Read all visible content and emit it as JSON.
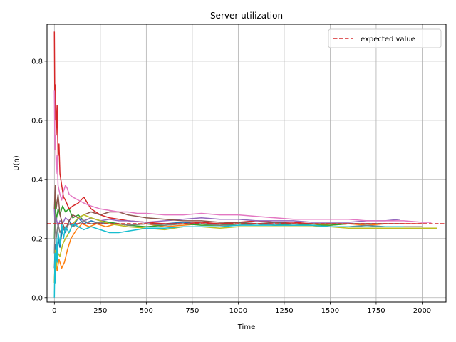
{
  "chart_data": {
    "type": "line",
    "title": "Server utilization",
    "xlabel": "Time",
    "ylabel": "U(n)",
    "xlim": [
      -40,
      2130
    ],
    "ylim": [
      -0.015,
      0.925
    ],
    "xticks": [
      0,
      250,
      500,
      750,
      1000,
      1250,
      1500,
      1750,
      2000
    ],
    "yticks": [
      0.0,
      0.2,
      0.4,
      0.6,
      0.8
    ],
    "ytick_labels": [
      "0.0",
      "0.2",
      "0.4",
      "0.6",
      "0.8"
    ],
    "grid": true,
    "legend": {
      "placement": "top-right",
      "entries": [
        "expected value"
      ]
    },
    "reference_line": {
      "name": "expected value",
      "y": 0.25,
      "color": "#d62728",
      "style": "dashed"
    },
    "series": [
      {
        "color": "#1f77b4",
        "x": [
          0,
          5,
          10,
          20,
          30,
          45,
          60,
          80,
          100,
          130,
          160,
          200,
          250,
          300,
          350,
          400,
          500,
          600,
          700,
          800,
          900,
          1000,
          1100,
          1200,
          1300,
          1400,
          1500,
          1600,
          1700,
          1800,
          1900
        ],
        "y": [
          0.1,
          0.18,
          0.12,
          0.2,
          0.17,
          0.24,
          0.22,
          0.26,
          0.24,
          0.27,
          0.25,
          0.26,
          0.25,
          0.255,
          0.25,
          0.245,
          0.25,
          0.25,
          0.255,
          0.25,
          0.25,
          0.255,
          0.25,
          0.25,
          0.25,
          0.25,
          0.25,
          0.25,
          0.25,
          0.25,
          0.25
        ]
      },
      {
        "color": "#ff7f0e",
        "x": [
          0,
          5,
          15,
          25,
          40,
          55,
          70,
          90,
          120,
          150,
          190,
          230,
          280,
          340,
          400,
          500,
          600,
          700,
          800,
          900,
          1000,
          1100,
          1200,
          1300,
          1400,
          1500,
          1600,
          1700,
          1800,
          1900,
          2000
        ],
        "y": [
          0.05,
          0.14,
          0.09,
          0.13,
          0.1,
          0.12,
          0.16,
          0.2,
          0.23,
          0.25,
          0.24,
          0.25,
          0.24,
          0.25,
          0.245,
          0.25,
          0.24,
          0.245,
          0.25,
          0.245,
          0.25,
          0.25,
          0.245,
          0.25,
          0.25,
          0.245,
          0.25,
          0.245,
          0.25,
          0.25,
          0.25
        ]
      },
      {
        "color": "#2ca02c",
        "x": [
          0,
          5,
          10,
          20,
          30,
          45,
          60,
          80,
          100,
          130,
          160,
          200,
          250,
          300,
          350,
          400,
          500,
          600,
          700,
          800,
          900,
          1000,
          1100,
          1200,
          1300,
          1400,
          1500,
          1600,
          1700,
          1800
        ],
        "y": [
          0.2,
          0.33,
          0.26,
          0.3,
          0.28,
          0.31,
          0.29,
          0.3,
          0.27,
          0.28,
          0.26,
          0.27,
          0.26,
          0.255,
          0.25,
          0.245,
          0.24,
          0.245,
          0.25,
          0.245,
          0.245,
          0.25,
          0.25,
          0.245,
          0.25,
          0.245,
          0.245,
          0.25,
          0.25,
          0.25
        ]
      },
      {
        "color": "#d62728",
        "x": [
          0,
          3,
          6,
          10,
          15,
          20,
          25,
          30,
          40,
          50,
          60,
          80,
          100,
          130,
          160,
          200,
          250,
          300,
          350,
          400,
          500,
          600,
          700,
          800,
          900,
          1000,
          1100,
          1200,
          1300,
          1400,
          1500,
          1600,
          1700,
          1800,
          1900,
          2000
        ],
        "y": [
          0.9,
          0.6,
          0.72,
          0.55,
          0.65,
          0.48,
          0.52,
          0.42,
          0.38,
          0.34,
          0.33,
          0.3,
          0.31,
          0.32,
          0.34,
          0.3,
          0.28,
          0.27,
          0.265,
          0.26,
          0.255,
          0.25,
          0.25,
          0.255,
          0.25,
          0.255,
          0.26,
          0.255,
          0.255,
          0.25,
          0.25,
          0.25,
          0.25,
          0.25,
          0.25,
          0.25
        ]
      },
      {
        "color": "#9467bd",
        "x": [
          0,
          5,
          10,
          20,
          30,
          45,
          60,
          80,
          100,
          130,
          160,
          200,
          250,
          300,
          350,
          400,
          500,
          600,
          700,
          800,
          900,
          1000,
          1100,
          1200,
          1300,
          1400,
          1500,
          1600,
          1700,
          1800,
          1880
        ],
        "y": [
          0.3,
          0.22,
          0.27,
          0.24,
          0.26,
          0.25,
          0.27,
          0.26,
          0.28,
          0.27,
          0.26,
          0.27,
          0.26,
          0.265,
          0.26,
          0.26,
          0.255,
          0.26,
          0.265,
          0.27,
          0.265,
          0.265,
          0.26,
          0.26,
          0.26,
          0.255,
          0.255,
          0.255,
          0.26,
          0.26,
          0.265
        ]
      },
      {
        "color": "#8c564b",
        "x": [
          0,
          5,
          10,
          20,
          30,
          45,
          60,
          80,
          100,
          130,
          160,
          200,
          250,
          300,
          350,
          400,
          500,
          600,
          700,
          800,
          900,
          1000,
          1100,
          1200,
          1300,
          1400,
          1500,
          1600,
          1700,
          1800,
          1900
        ],
        "y": [
          0.3,
          0.38,
          0.3,
          0.35,
          0.28,
          0.25,
          0.23,
          0.26,
          0.28,
          0.27,
          0.28,
          0.29,
          0.28,
          0.29,
          0.29,
          0.28,
          0.27,
          0.265,
          0.26,
          0.26,
          0.255,
          0.255,
          0.25,
          0.255,
          0.25,
          0.25,
          0.25,
          0.25,
          0.25,
          0.25,
          0.25
        ]
      },
      {
        "color": "#e377c2",
        "x": [
          0,
          3,
          6,
          10,
          15,
          20,
          30,
          40,
          50,
          60,
          70,
          80,
          100,
          130,
          160,
          200,
          250,
          300,
          350,
          400,
          450,
          500,
          600,
          700,
          800,
          900,
          1000,
          1100,
          1200,
          1300,
          1400,
          1500,
          1600,
          1700,
          1800,
          1900,
          2000,
          2050
        ],
        "y": [
          0.7,
          0.5,
          0.55,
          0.42,
          0.48,
          0.38,
          0.35,
          0.33,
          0.36,
          0.38,
          0.37,
          0.35,
          0.34,
          0.33,
          0.32,
          0.31,
          0.3,
          0.295,
          0.29,
          0.29,
          0.285,
          0.285,
          0.28,
          0.28,
          0.285,
          0.28,
          0.28,
          0.275,
          0.27,
          0.265,
          0.265,
          0.265,
          0.265,
          0.26,
          0.26,
          0.26,
          0.255,
          0.255
        ]
      },
      {
        "color": "#7f7f7f",
        "x": [
          0,
          5,
          10,
          20,
          30,
          45,
          60,
          80,
          100,
          130,
          160,
          200,
          250,
          300,
          350,
          400,
          500,
          600,
          700,
          800,
          900,
          1000,
          1100,
          1200,
          1300,
          1400,
          1500,
          1600,
          1700,
          1800,
          1900,
          2000
        ],
        "y": [
          0.15,
          0.28,
          0.2,
          0.25,
          0.22,
          0.24,
          0.23,
          0.25,
          0.24,
          0.25,
          0.26,
          0.25,
          0.255,
          0.25,
          0.25,
          0.245,
          0.25,
          0.245,
          0.25,
          0.25,
          0.245,
          0.245,
          0.25,
          0.245,
          0.245,
          0.245,
          0.24,
          0.24,
          0.245,
          0.24,
          0.24,
          0.24
        ]
      },
      {
        "color": "#bcbd22",
        "x": [
          0,
          5,
          10,
          20,
          30,
          45,
          60,
          80,
          100,
          130,
          160,
          200,
          250,
          300,
          350,
          400,
          500,
          600,
          700,
          800,
          900,
          1000,
          1100,
          1200,
          1300,
          1400,
          1500,
          1600,
          1700,
          1800,
          1900,
          2000,
          2080
        ],
        "y": [
          0.05,
          0.16,
          0.1,
          0.15,
          0.14,
          0.18,
          0.2,
          0.22,
          0.25,
          0.27,
          0.28,
          0.27,
          0.26,
          0.25,
          0.245,
          0.24,
          0.235,
          0.23,
          0.24,
          0.24,
          0.235,
          0.24,
          0.24,
          0.24,
          0.24,
          0.24,
          0.24,
          0.235,
          0.235,
          0.235,
          0.235,
          0.235,
          0.235
        ]
      },
      {
        "color": "#17becf",
        "x": [
          0,
          3,
          6,
          10,
          15,
          20,
          30,
          40,
          50,
          60,
          80,
          100,
          130,
          160,
          200,
          250,
          300,
          350,
          400,
          450,
          500,
          600,
          700,
          800,
          900,
          1000,
          1100,
          1200,
          1300,
          1400,
          1500,
          1600,
          1700,
          1800,
          1900
        ],
        "y": [
          0.0,
          0.15,
          0.05,
          0.2,
          0.12,
          0.22,
          0.18,
          0.25,
          0.2,
          0.24,
          0.22,
          0.25,
          0.24,
          0.23,
          0.24,
          0.23,
          0.22,
          0.22,
          0.225,
          0.23,
          0.235,
          0.235,
          0.24,
          0.24,
          0.24,
          0.245,
          0.245,
          0.245,
          0.245,
          0.245,
          0.24,
          0.24,
          0.24,
          0.24,
          0.24
        ]
      }
    ]
  }
}
